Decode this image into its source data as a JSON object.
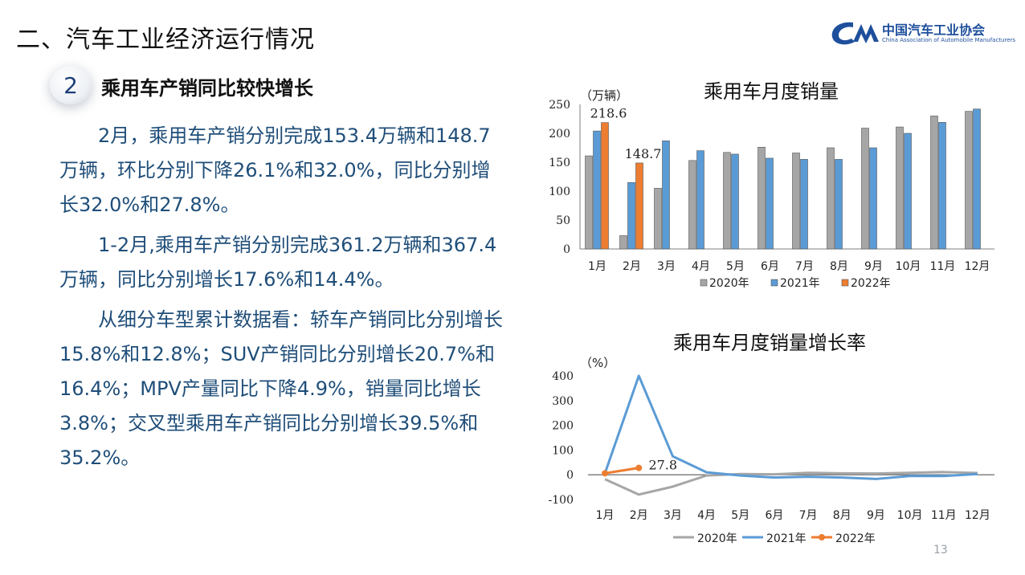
{
  "slide": {
    "title": "二、汽车工业经济运行情况",
    "section_number": "2",
    "section_title": "乘用车产销同比较快增长",
    "paragraphs": [
      "2月，乘用车产销分别完成153.4万辆和148.7万辆，环比分别下降26.1%和32.0%，同比分别增长32.0%和27.8%。",
      "1-2月,乘用车产销分别完成361.2万辆和367.4万辆，同比分别增长17.6%和14.4%。",
      "从细分车型累计数据看：轿车产销同比分别增长15.8%和12.8%；SUV产销同比分别增长20.7%和16.4%；MPV产量同比下降4.9%，销量同比增长3.8%；交叉型乘用车产销同比分别增长39.5%和35.2%。"
    ],
    "page_number": "13"
  },
  "logo": {
    "cn": "中国汽车工业协会",
    "en": "China Association of Automobile Manufacturers",
    "color": "#1e4f9c"
  },
  "chart_data": [
    {
      "type": "bar",
      "title": "乘用车月度销量",
      "ylabel": "（万辆）",
      "ylim": [
        0,
        250
      ],
      "yticks": [
        0,
        50,
        100,
        150,
        200,
        250
      ],
      "categories": [
        "1月",
        "2月",
        "3月",
        "4月",
        "5月",
        "6月",
        "7月",
        "8月",
        "9月",
        "10月",
        "11月",
        "12月"
      ],
      "series": [
        {
          "name": "2020年",
          "color": "#a6a6a6",
          "values": [
            161,
            23,
            105,
            153,
            167,
            176,
            166,
            175,
            209,
            211,
            230,
            238
          ]
        },
        {
          "name": "2021年",
          "color": "#5b9bd5",
          "values": [
            204,
            115,
            187,
            170,
            164,
            157,
            155,
            155,
            175,
            200,
            219,
            242
          ]
        },
        {
          "name": "2022年",
          "color": "#ed7d31",
          "values": [
            218.6,
            148.7,
            null,
            null,
            null,
            null,
            null,
            null,
            null,
            null,
            null,
            null
          ]
        }
      ],
      "data_labels": [
        {
          "series": 2,
          "index": 0,
          "text": "218.6"
        },
        {
          "series": 2,
          "index": 1,
          "text": "148.7"
        }
      ],
      "legend": "bottom"
    },
    {
      "type": "line",
      "title": "乘用车月度销量增长率",
      "ylabel": "（%）",
      "ylim": [
        -100,
        400
      ],
      "yticks": [
        -100,
        0,
        100,
        200,
        300,
        400
      ],
      "categories": [
        "1月",
        "2月",
        "3月",
        "4月",
        "5月",
        "6月",
        "7月",
        "8月",
        "9月",
        "10月",
        "11月",
        "12月"
      ],
      "series": [
        {
          "name": "2020年",
          "color": "#a6a6a6",
          "values": [
            -18,
            -80,
            -48,
            -3,
            3,
            2,
            8,
            6,
            5,
            8,
            11,
            7
          ]
        },
        {
          "name": "2021年",
          "color": "#5b9bd5",
          "values": [
            6,
            400,
            75,
            10,
            -3,
            -11,
            -8,
            -11,
            -17,
            -5,
            -5,
            3
          ]
        },
        {
          "name": "2022年",
          "color": "#ed7d31",
          "values": [
            6,
            27.8,
            null,
            null,
            null,
            null,
            null,
            null,
            null,
            null,
            null,
            null
          ]
        }
      ],
      "data_labels": [
        {
          "series": 2,
          "index": 1,
          "text": "27.8"
        }
      ],
      "legend": "bottom"
    }
  ]
}
